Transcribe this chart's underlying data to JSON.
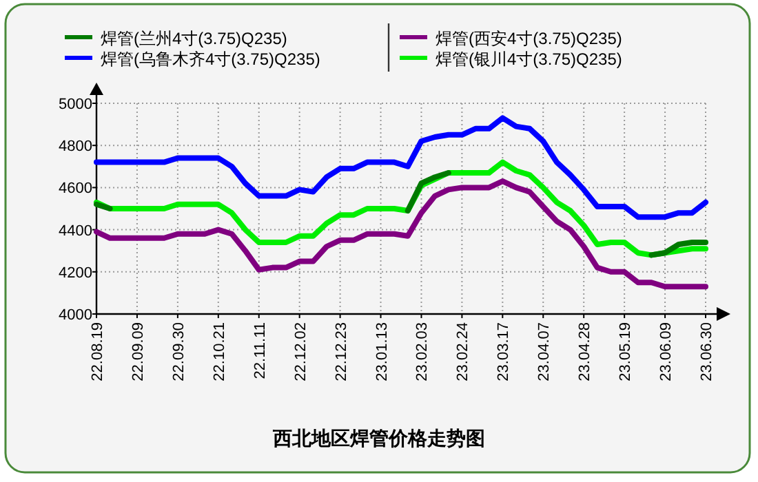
{
  "chart_data": {
    "type": "line",
    "title": "西北地区焊管价格走势图",
    "categories": [
      "22.08.19",
      null,
      null,
      "22.09.09",
      null,
      null,
      "22.09.30",
      null,
      null,
      "22.10.21",
      null,
      null,
      "22.11.11",
      null,
      null,
      "22.12.02",
      null,
      null,
      "22.12.23",
      null,
      null,
      "23.01.13",
      null,
      null,
      "23.02.03",
      null,
      null,
      "23.02.24",
      null,
      null,
      "23.03.17",
      null,
      null,
      "23.04.07",
      null,
      null,
      "23.04.28",
      null,
      null,
      "23.05.19",
      null,
      null,
      "23.06.09",
      null,
      null,
      "23.06.30"
    ],
    "series": [
      {
        "name": "焊管(兰州4寸(3.75)Q235)",
        "color": "#007a00",
        "values": [
          4520,
          4500,
          null,
          null,
          null,
          null,
          null,
          null,
          null,
          null,
          null,
          null,
          null,
          null,
          null,
          null,
          null,
          null,
          null,
          null,
          null,
          null,
          null,
          4490,
          4620,
          4650,
          4670,
          null,
          null,
          null,
          null,
          null,
          null,
          null,
          null,
          null,
          null,
          null,
          null,
          null,
          null,
          4280,
          4290,
          4330,
          4340,
          4340
        ]
      },
      {
        "name": "焊管(乌鲁木齐4寸(3.75)Q235)",
        "color": "#0000ff",
        "values": [
          4720,
          4720,
          4720,
          4720,
          4720,
          4720,
          4740,
          4740,
          4740,
          4740,
          4700,
          4620,
          4560,
          4560,
          4560,
          4590,
          4580,
          4650,
          4690,
          4690,
          4720,
          4720,
          4720,
          4700,
          4820,
          4840,
          4850,
          4850,
          4880,
          4880,
          4930,
          4890,
          4880,
          4820,
          4720,
          4660,
          4590,
          4510,
          4510,
          4510,
          4460,
          4460,
          4460,
          4480,
          4480,
          4530
        ]
      },
      {
        "name": "焊管(西安4寸(3.75)Q235)",
        "color": "#800080",
        "values": [
          4390,
          4360,
          4360,
          4360,
          4360,
          4360,
          4380,
          4380,
          4380,
          4400,
          4380,
          4300,
          4210,
          4220,
          4220,
          4250,
          4250,
          4320,
          4350,
          4350,
          4380,
          4380,
          4380,
          4370,
          4480,
          4560,
          4590,
          4600,
          4600,
          4600,
          4630,
          4600,
          4580,
          4510,
          4440,
          4400,
          4320,
          4220,
          4200,
          4200,
          4150,
          4150,
          4130,
          4130,
          4130,
          4130
        ]
      },
      {
        "name": "焊管(银川4寸(3.75)Q235)",
        "color": "#00ee00",
        "values": [
          4530,
          4500,
          4500,
          4500,
          4500,
          4500,
          4520,
          4520,
          4520,
          4520,
          4480,
          4400,
          4340,
          4340,
          4340,
          4370,
          4370,
          4430,
          4470,
          4470,
          4500,
          4500,
          4500,
          4490,
          4610,
          4640,
          4670,
          4670,
          4670,
          4670,
          4720,
          4680,
          4660,
          4600,
          4530,
          4490,
          4420,
          4330,
          4340,
          4340,
          4290,
          4280,
          4290,
          4300,
          4310,
          4310
        ]
      }
    ],
    "ylim": [
      4000,
      5000
    ],
    "yticks": [
      4000,
      4200,
      4400,
      4600,
      4800,
      5000
    ],
    "grid": true,
    "legend": "top"
  }
}
